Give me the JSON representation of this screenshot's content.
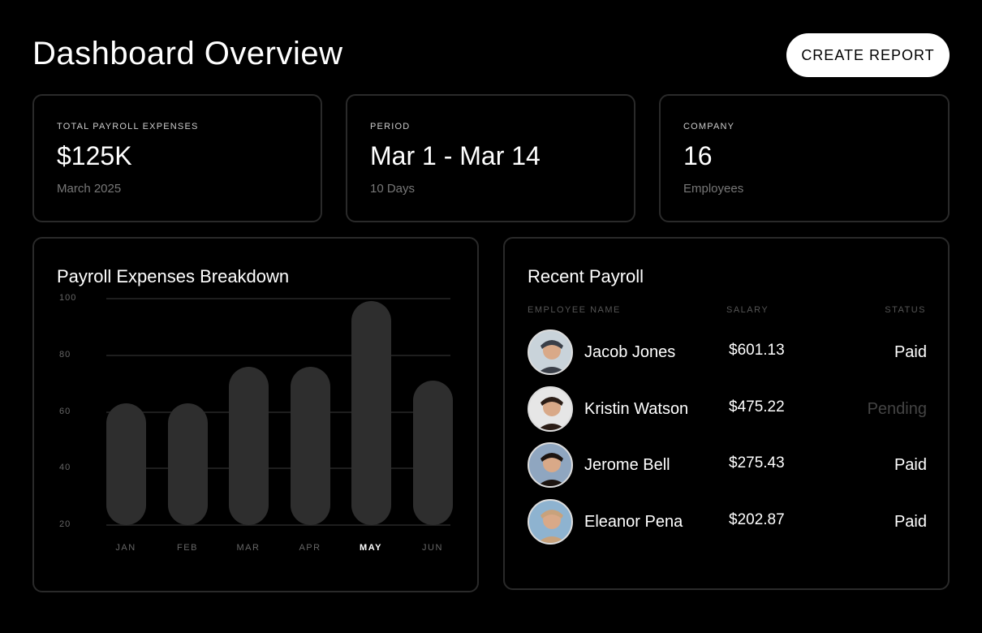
{
  "header": {
    "title": "Dashboard Overview",
    "create_report": "CREATE REPORT"
  },
  "stats": [
    {
      "label": "TOTAL PAYROLL EXPENSES",
      "value": "$125K",
      "sub": "March 2025"
    },
    {
      "label": "PERIOD",
      "value": "Mar 1 - Mar 14",
      "sub": "10 Days"
    },
    {
      "label": "COMPANY",
      "value": "16",
      "sub": "Employees"
    }
  ],
  "chart_data": {
    "type": "bar",
    "title": "Payroll Expenses Breakdown",
    "categories": [
      "JAN",
      "FEB",
      "MAR",
      "APR",
      "MAY",
      "JUN"
    ],
    "values": [
      63,
      63,
      76,
      76,
      99,
      71
    ],
    "yticks": [
      "100",
      "80",
      "60",
      "40",
      "20"
    ],
    "ylim": [
      20,
      100
    ],
    "highlighted": "MAY",
    "grid": true,
    "bar_color": "#2e2e2e"
  },
  "payroll": {
    "title": "Recent Payroll",
    "headers": {
      "name": "EMPLOYEE NAME",
      "salary": "SALARY",
      "status": "STATUS"
    },
    "rows": [
      {
        "name": "Jacob Jones",
        "salary": "$601.13",
        "status": "Paid"
      },
      {
        "name": "Kristin Watson",
        "salary": "$475.22",
        "status": "Pending"
      },
      {
        "name": "Jerome Bell",
        "salary": "$275.43",
        "status": "Paid"
      },
      {
        "name": "Eleanor Pena",
        "salary": "$202.87",
        "status": "Paid"
      }
    ]
  }
}
